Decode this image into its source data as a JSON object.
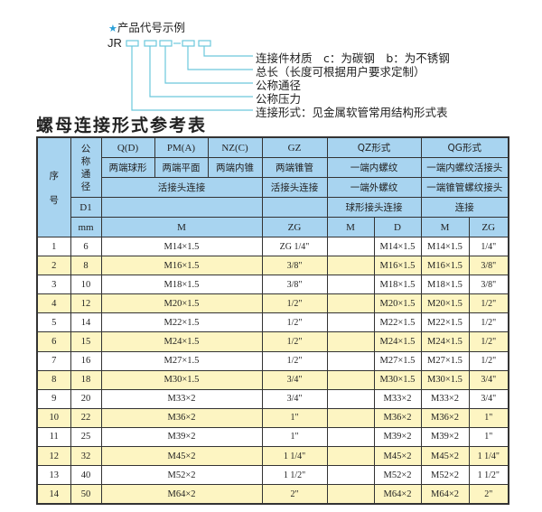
{
  "example": {
    "label": "产品代号示例",
    "code": "JR",
    "star_icon": "star-icon",
    "accent": "#2aa0d8",
    "legend": [
      "连接件材质　c：为碳钢　b：为不锈钢",
      "总长（长度可根据用户要求定制）",
      "公称通径",
      "公称压力",
      "连接形式：见金属软管常用结构形式表"
    ]
  },
  "title": "螺母连接形式参考表",
  "header": {
    "seq": "序\n\n号",
    "dn": "公称通径",
    "d1": "D1",
    "mm": "mm",
    "q": "Q(D)",
    "pm": "PM(A)",
    "nz": "NZ(C)",
    "gz": "GZ",
    "qz": "QZ形式",
    "qg": "QG形式",
    "q2": "两端球形",
    "pm2": "两端平面",
    "nz2": "两端内锥",
    "gz2": "两端锥管",
    "qz2": "一端内螺纹",
    "qg2": "一端内螺纹活接头",
    "conn": "活接头连接",
    "gz3": "活接头连接",
    "qz3": "一端外螺纹",
    "qg3": "一端锥管螺纹接头",
    "qz4": "球形接头连接",
    "qg4": "连接",
    "m": "M",
    "zg": "ZG",
    "qzm": "M",
    "qzd": "D",
    "qgm": "M",
    "qgzg": "ZG"
  },
  "rows": [
    [
      "1",
      "6",
      "M14×1.5",
      "ZG 1/4\"",
      "",
      "M14×1.5",
      "M14×1.5",
      "1/4\""
    ],
    [
      "2",
      "8",
      "M16×1.5",
      "3/8\"",
      "",
      "M16×1.5",
      "M16×1.5",
      "3/8\""
    ],
    [
      "3",
      "10",
      "M18×1.5",
      "3/8\"",
      "",
      "M18×1.5",
      "M18×1.5",
      "3/8\""
    ],
    [
      "4",
      "12",
      "M20×1.5",
      "1/2\"",
      "",
      "M20×1.5",
      "M20×1.5",
      "1/2\""
    ],
    [
      "5",
      "14",
      "M22×1.5",
      "1/2\"",
      "",
      "M22×1.5",
      "M22×1.5",
      "1/2\""
    ],
    [
      "6",
      "15",
      "M24×1.5",
      "1/2\"",
      "",
      "M24×1.5",
      "M24×1.5",
      "1/2\""
    ],
    [
      "7",
      "16",
      "M27×1.5",
      "1/2\"",
      "",
      "M27×1.5",
      "M27×1.5",
      "1/2\""
    ],
    [
      "8",
      "18",
      "M30×1.5",
      "3/4\"",
      "",
      "M30×1.5",
      "M30×1.5",
      "3/4\""
    ],
    [
      "9",
      "20",
      "M33×2",
      "3/4\"",
      "",
      "M33×2",
      "M33×2",
      "3/4\""
    ],
    [
      "10",
      "22",
      "M36×2",
      "1\"",
      "",
      "M36×2",
      "M36×2",
      "1\""
    ],
    [
      "11",
      "25",
      "M39×2",
      "1\"",
      "",
      "M39×2",
      "M39×2",
      "1\""
    ],
    [
      "12",
      "32",
      "M45×2",
      "1 1/4\"",
      "",
      "M45×2",
      "M45×2",
      "1 1/4\""
    ],
    [
      "13",
      "40",
      "M52×2",
      "1 1/2\"",
      "",
      "M52×2",
      "M52×2",
      "1 1/2\""
    ],
    [
      "14",
      "50",
      "M64×2",
      "2\"",
      "",
      "M64×2",
      "M64×2",
      "2\""
    ]
  ],
  "colors": {
    "header_bg": "#a8d4f0",
    "alt_row": "#fdf5c2",
    "leader_line": "#6cc8dc"
  }
}
